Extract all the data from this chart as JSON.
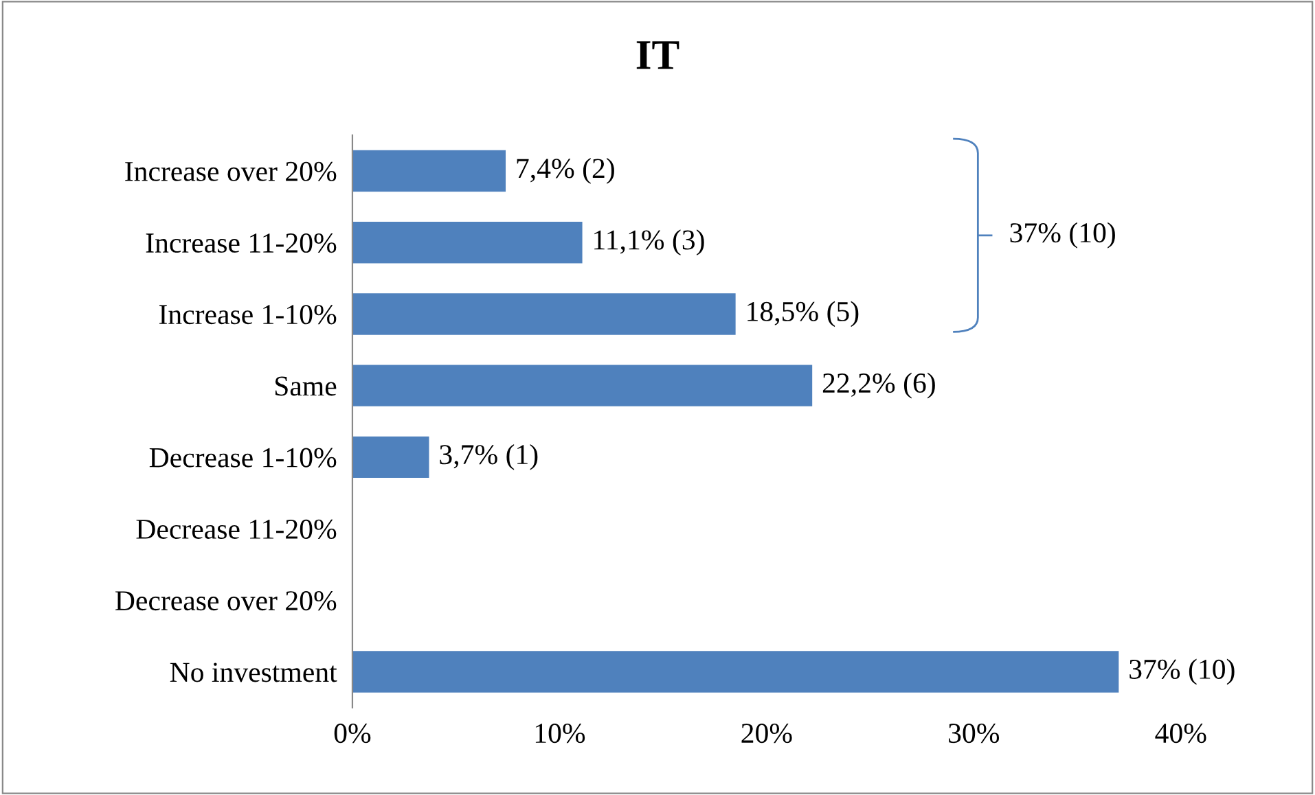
{
  "chart_data": {
    "type": "bar",
    "orientation": "horizontal",
    "title": "IT",
    "categories": [
      "Increase over 20%",
      "Increase 11-20%",
      "Increase 1-10%",
      "Same",
      "Decrease 1-10%",
      "Decrease 11-20%",
      "Decrease over 20%",
      "No investment"
    ],
    "values": [
      7.4,
      11.1,
      18.5,
      22.2,
      3.7,
      0,
      0,
      37
    ],
    "value_labels": [
      "7,4% (2)",
      "11,1% (3)",
      "18,5% (5)",
      "22,2% (6)",
      "3,7% (1)",
      null,
      null,
      "37% (10)"
    ],
    "color": "#4f81bd",
    "xlim": [
      0,
      40
    ],
    "xticks": [
      {
        "value": 0,
        "label": "0%"
      },
      {
        "value": 10,
        "label": "10%"
      },
      {
        "value": 20,
        "label": "20%"
      },
      {
        "value": 30,
        "label": "30%"
      },
      {
        "value": 40,
        "label": "40%"
      }
    ],
    "grid": false,
    "legend": false,
    "annotations": [
      "37% (10)"
    ]
  }
}
